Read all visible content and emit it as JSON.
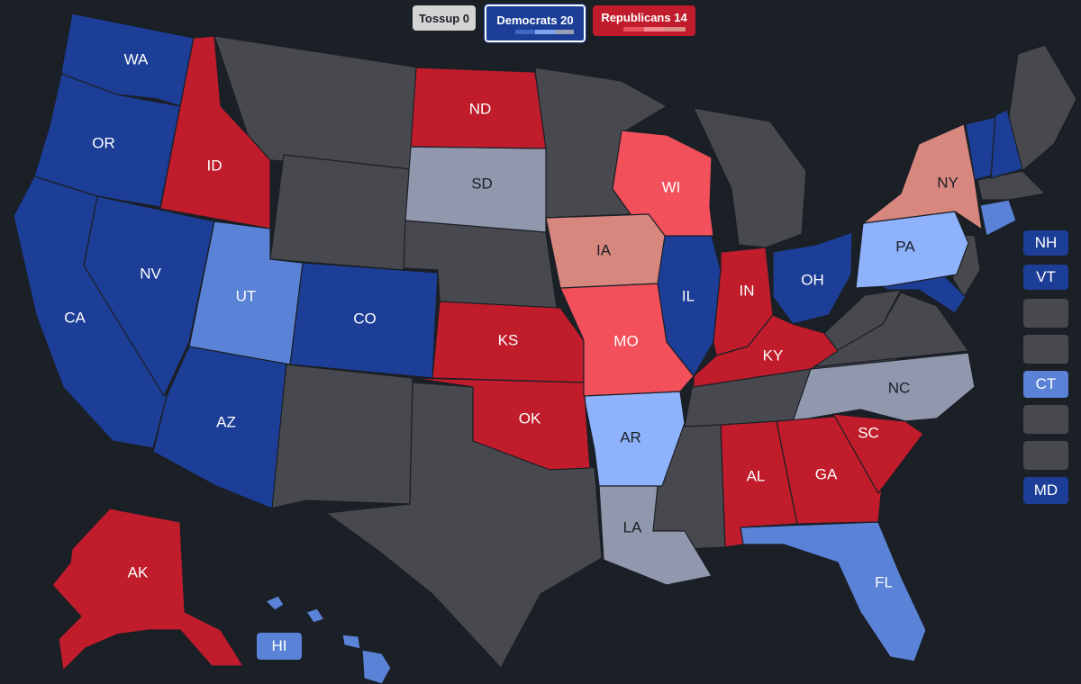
{
  "legend": {
    "tossup": {
      "label": "Tossup 0",
      "color": "#d4d4d4"
    },
    "democrats": {
      "label": "Democrats 20",
      "color": "#1c3e96",
      "shades": [
        "#1c3e96",
        "#3f66c4",
        "#7fa4f0",
        "#9aa0b3"
      ]
    },
    "republicans": {
      "label": "Republicans 14",
      "color": "#c01c2b",
      "shades": [
        "#c01c2b",
        "#e8505b",
        "#f08a90",
        "#d98b84"
      ]
    }
  },
  "colors": {
    "safe_dem": "#1c3e96",
    "likely_dem": "#5a82d6",
    "lean_dem": "#8eb2fb",
    "safe_rep": "#c01c2b",
    "likely_rep": "#f2505b",
    "lean_rep": "#d8877f",
    "tilt_grey": "#9197ad",
    "no_race": "#48494e"
  },
  "states": {
    "WA": "WA",
    "OR": "OR",
    "CA": "CA",
    "NV": "NV",
    "ID": "ID",
    "UT": "UT",
    "AZ": "AZ",
    "CO": "CO",
    "ND": "ND",
    "SD": "SD",
    "KS": "KS",
    "OK": "OK",
    "IA": "IA",
    "MO": "MO",
    "AR": "AR",
    "LA": "LA",
    "WI": "WI",
    "IL": "IL",
    "IN": "IN",
    "OH": "OH",
    "KY": "KY",
    "PA": "PA",
    "NY": "NY",
    "NC": "NC",
    "SC": "SC",
    "GA": "GA",
    "AL": "AL",
    "FL": "FL",
    "AK": "AK",
    "HI": "HI"
  },
  "side_boxes": [
    {
      "label": "NH",
      "color": "#1c3e96"
    },
    {
      "label": "VT",
      "color": "#1c3e96"
    },
    {
      "label": "",
      "color": "#48494e"
    },
    {
      "label": "",
      "color": "#48494e"
    },
    {
      "label": "CT",
      "color": "#5a82d6"
    },
    {
      "label": "",
      "color": "#48494e"
    },
    {
      "label": "",
      "color": "#48494e"
    },
    {
      "label": "MD",
      "color": "#1c3e96"
    }
  ]
}
